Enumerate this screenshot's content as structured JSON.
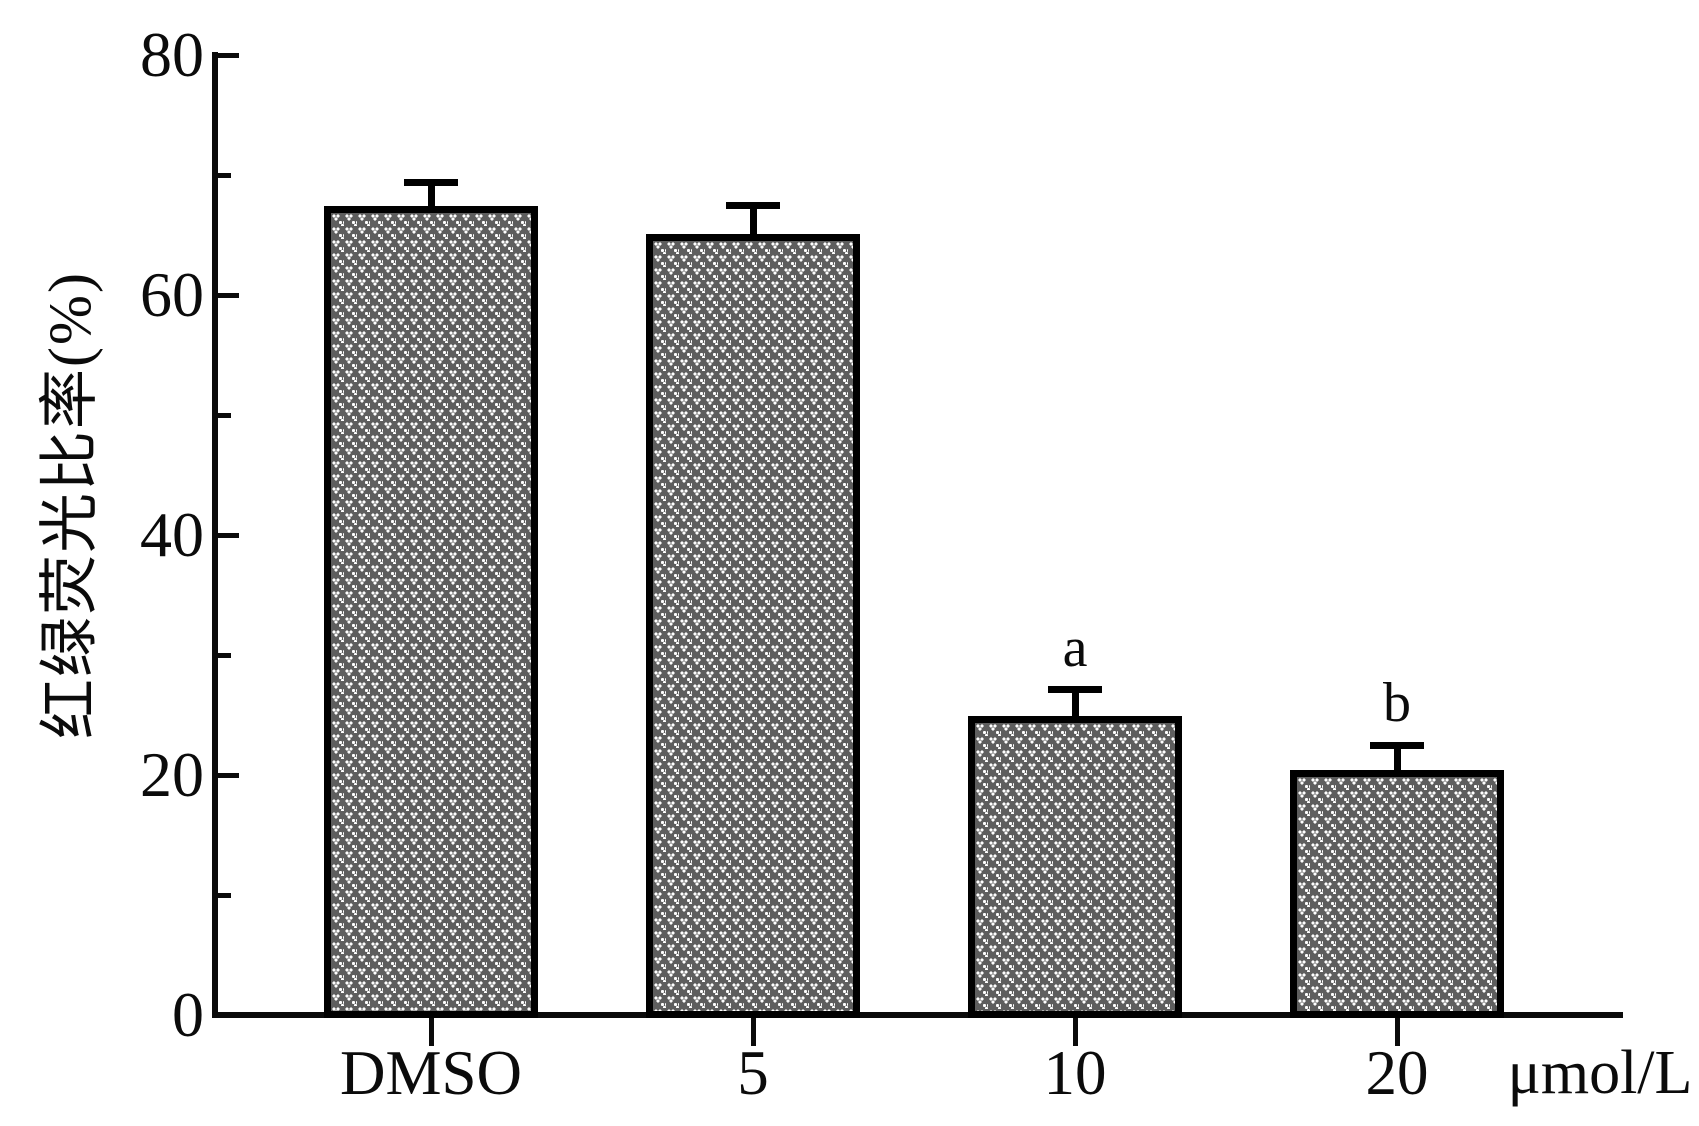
{
  "figure": {
    "background": "#ffffff",
    "ink_color": "#0b0b0b",
    "bar_fill": "#5e5e5e",
    "bar_pattern": "white-dot-triads",
    "bar_border": "#000000"
  },
  "chart_data": {
    "type": "bar",
    "title": "",
    "ylabel": "红绿荧光比率(%)",
    "xlabel": "",
    "x_unit_label": "μmol/L",
    "categories": [
      "DMSO",
      "5",
      "10",
      "20"
    ],
    "values": [
      67.4,
      65.1,
      24.9,
      20.4
    ],
    "errors_upper": [
      2.0,
      2.4,
      2.2,
      2.1
    ],
    "annotations": [
      "",
      "",
      "a",
      "b"
    ],
    "ylim": [
      0,
      80
    ],
    "yticks": [
      0,
      20,
      40,
      60,
      80
    ],
    "minor_yticks": [
      10,
      30,
      50,
      70
    ],
    "grid": false,
    "legend": "none",
    "error_bars": "upper-only"
  }
}
